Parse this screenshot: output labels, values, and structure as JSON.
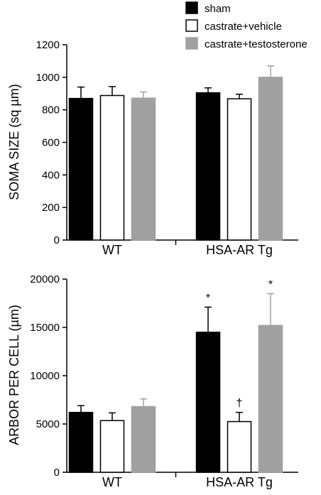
{
  "legend": {
    "entries": [
      {
        "label": "sham",
        "color": "#000000",
        "stroke": "#000000"
      },
      {
        "label": "castrate+vehicle",
        "color": "#ffffff",
        "stroke": "#000000"
      },
      {
        "label": "castrate+testosterone",
        "color": "#a0a0a0",
        "stroke": "#a0a0a0"
      }
    ],
    "placement": "top-right"
  },
  "chart_data": [
    {
      "type": "bar",
      "ylabel": "SOMA  SIZE  (sq µm)",
      "xlabel": "",
      "categories": [
        "WT",
        "HSA-AR Tg"
      ],
      "ylim": [
        0,
        1200
      ],
      "yticks": [
        0,
        200,
        400,
        600,
        800,
        1000,
        1200
      ],
      "grid": false,
      "series": [
        {
          "name": "sham",
          "values": [
            870,
            905
          ],
          "errors": [
            70,
            30
          ],
          "color": "#000000",
          "stroke": "#000000"
        },
        {
          "name": "castrate+vehicle",
          "values": [
            888,
            868
          ],
          "errors": [
            55,
            28
          ],
          "color": "#ffffff",
          "stroke": "#000000"
        },
        {
          "name": "castrate+testosterone",
          "values": [
            872,
            1000
          ],
          "errors": [
            38,
            70
          ],
          "color": "#a0a0a0",
          "stroke": "#a0a0a0"
        }
      ],
      "annotations": []
    },
    {
      "type": "bar",
      "ylabel": "ARBOR  PER  CELL  (µm)",
      "xlabel": "",
      "categories": [
        "WT",
        "HSA-AR Tg"
      ],
      "ylim": [
        0,
        20000
      ],
      "yticks": [
        0,
        5000,
        10000,
        15000,
        20000
      ],
      "grid": false,
      "series": [
        {
          "name": "sham",
          "values": [
            6200,
            14500
          ],
          "errors": [
            700,
            2600
          ],
          "color": "#000000",
          "stroke": "#000000"
        },
        {
          "name": "castrate+vehicle",
          "values": [
            5350,
            5250
          ],
          "errors": [
            800,
            950
          ],
          "color": "#ffffff",
          "stroke": "#000000"
        },
        {
          "name": "castrate+testosterone",
          "values": [
            6800,
            15200
          ],
          "errors": [
            800,
            3300
          ],
          "color": "#a0a0a0",
          "stroke": "#a0a0a0"
        }
      ],
      "annotations": [
        {
          "text": "*",
          "category": 1,
          "series": 0
        },
        {
          "text": "†",
          "category": 1,
          "series": 1
        },
        {
          "text": "*",
          "category": 1,
          "series": 2
        }
      ]
    }
  ]
}
